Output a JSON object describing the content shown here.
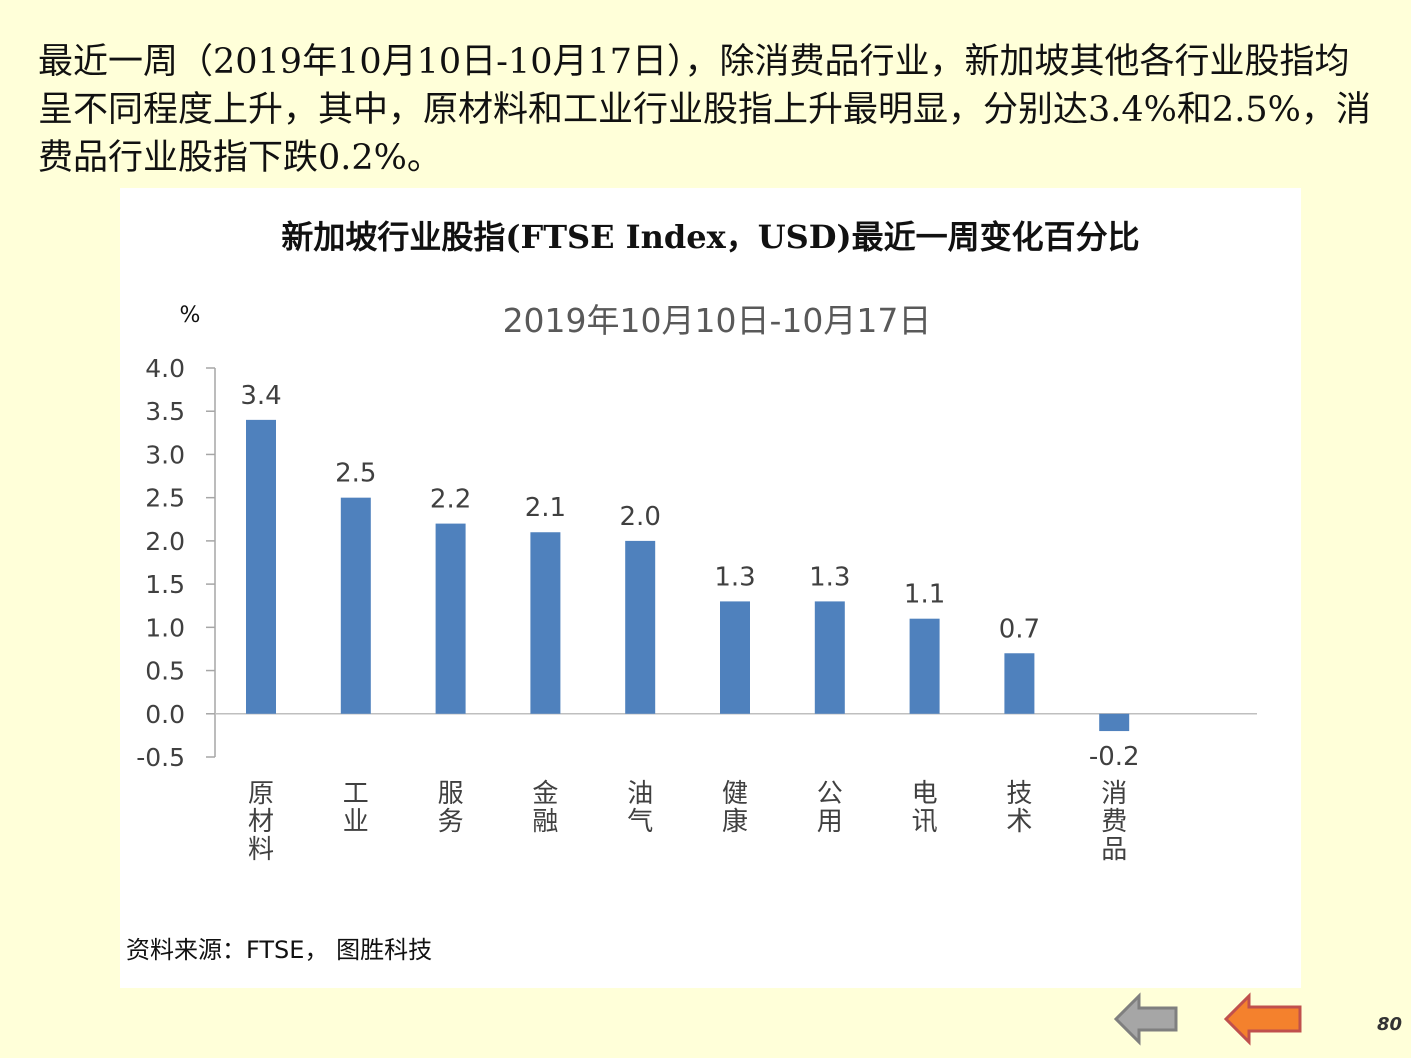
{
  "intro_text": "最近一周（2019年10月10日-10月17日），除消费品行业，新加坡其他各行业股指均呈不同程度上升，其中，原材料和工业行业股指上升最明显，分别达3.4%和2.5%，消费品行业股指下跌0.2%。",
  "chart_data": {
    "type": "bar",
    "title": "新加坡行业股指(FTSE Index，USD)最近一周变化百分比",
    "subtitle": "2019年10月10日-10月17日",
    "ylabel": "%",
    "xlabel": "",
    "categories": [
      "原材料",
      "工业",
      "服务",
      "金融",
      "油气",
      "健康",
      "公用",
      "电讯",
      "技术",
      "消费品"
    ],
    "values": [
      3.4,
      2.5,
      2.2,
      2.1,
      2.0,
      1.3,
      1.3,
      1.1,
      0.7,
      -0.2
    ],
    "value_labels": [
      "3.4",
      "2.5",
      "2.2",
      "2.1",
      "2.0",
      "1.3",
      "1.3",
      "1.1",
      "0.7",
      "-0.2"
    ],
    "ylim": [
      -0.5,
      4.0
    ],
    "yticks": [
      "4.0",
      "3.5",
      "3.0",
      "2.5",
      "2.0",
      "1.5",
      "1.0",
      "0.5",
      "0.0",
      "-0.5"
    ],
    "ytick_values": [
      4.0,
      3.5,
      3.0,
      2.5,
      2.0,
      1.5,
      1.0,
      0.5,
      0.0,
      -0.5
    ],
    "bar_color": "#4f81bd",
    "grid": false,
    "legend": "none"
  },
  "source_text": "资料来源：FTSE， 图胜科技",
  "nav": {
    "prev_color": "#a6a6a6",
    "next_color": "#f4812d"
  },
  "page_number": "80"
}
